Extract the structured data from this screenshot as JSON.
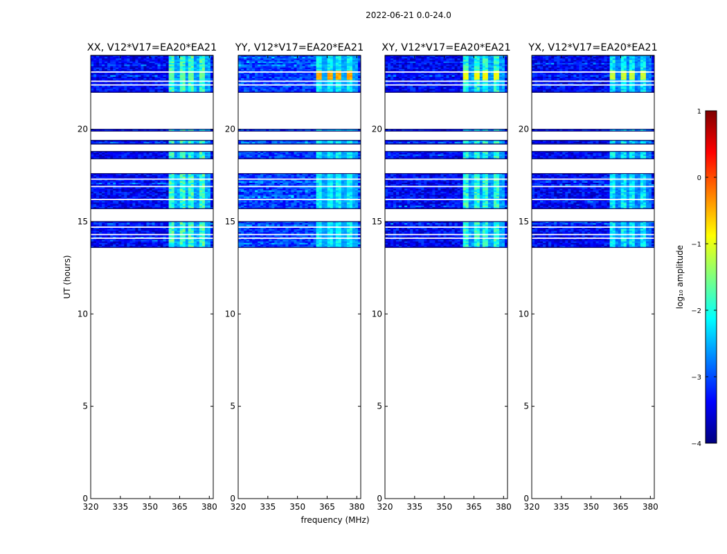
{
  "figure": {
    "suptitle": "2022-06-21 0.0-24.0",
    "ylabel": "UT (hours)",
    "xlabel": "frequency (MHz)"
  },
  "colorbar": {
    "label": "log₁₀ amplitude",
    "range": [
      -4,
      1
    ],
    "ticks": [
      1,
      0,
      -1,
      -2,
      -3,
      -4
    ],
    "tick_labels": [
      "1",
      "0",
      "−1",
      "−2",
      "−3",
      "−4"
    ],
    "colormap": "jet",
    "colors": [
      "#00007f",
      "#0000ff",
      "#007fff",
      "#00ffff",
      "#7fff7f",
      "#ffff00",
      "#ff7f00",
      "#ff0000",
      "#7f0000"
    ]
  },
  "chart_data": [
    {
      "type": "heatmap",
      "title": "XX, V12*V17=EA20*EA21",
      "xlim": [
        320,
        382
      ],
      "ylim": [
        0,
        24
      ],
      "xticks": [
        320,
        335,
        350,
        365,
        380
      ],
      "yticks": [
        0,
        5,
        10,
        15,
        20
      ],
      "xlabel": "",
      "ylabel": "UT (hours)",
      "data_time_ranges_hours": [
        [
          13.6,
          15.0
        ],
        [
          15.7,
          17.6
        ],
        [
          18.4,
          18.8
        ],
        [
          19.2,
          19.4
        ],
        [
          19.9,
          20.0
        ],
        [
          22.0,
          24.0
        ]
      ],
      "rfi_band_mhz": [
        360,
        380
      ],
      "flagged_rows_hours": [
        23.1,
        22.6,
        22.4,
        17.3,
        16.9,
        16.2,
        14.7,
        14.3,
        14.1
      ],
      "typical_log_amplitude": -3.4,
      "peak_log_amplitude": -1.5,
      "peak_band_log_amplitude": -1.6
    },
    {
      "type": "heatmap",
      "title": "YY, V12*V17=EA20*EA21",
      "xlim": [
        320,
        382
      ],
      "ylim": [
        0,
        24
      ],
      "xticks": [
        320,
        335,
        350,
        365,
        380
      ],
      "yticks": [
        0,
        5,
        10,
        15,
        20
      ],
      "xlabel": "frequency (MHz)",
      "ylabel": "",
      "data_time_ranges_hours": [
        [
          13.6,
          15.0
        ],
        [
          15.7,
          17.6
        ],
        [
          18.4,
          18.8
        ],
        [
          19.2,
          19.4
        ],
        [
          19.9,
          20.0
        ],
        [
          22.0,
          24.0
        ]
      ],
      "rfi_band_mhz": [
        360,
        380
      ],
      "flagged_rows_hours": [
        23.1,
        22.6,
        22.4,
        17.3,
        16.9,
        16.2,
        14.7,
        14.3,
        14.1
      ],
      "typical_log_amplitude": -3.1,
      "peak_log_amplitude": -0.3,
      "peak_band_log_amplitude": -2.0
    },
    {
      "type": "heatmap",
      "title": "XY, V12*V17=EA20*EA21",
      "xlim": [
        320,
        382
      ],
      "ylim": [
        0,
        24
      ],
      "xticks": [
        320,
        335,
        350,
        365,
        380
      ],
      "yticks": [
        0,
        5,
        10,
        15,
        20
      ],
      "xlabel": "",
      "ylabel": "",
      "data_time_ranges_hours": [
        [
          13.6,
          15.0
        ],
        [
          15.7,
          17.6
        ],
        [
          18.4,
          18.8
        ],
        [
          19.2,
          19.4
        ],
        [
          19.9,
          20.0
        ],
        [
          22.0,
          24.0
        ]
      ],
      "rfi_band_mhz": [
        360,
        380
      ],
      "flagged_rows_hours": [
        23.1,
        22.6,
        22.4,
        17.3,
        16.9,
        16.2,
        14.7,
        14.3,
        14.1
      ],
      "typical_log_amplitude": -3.4,
      "peak_log_amplitude": -0.8,
      "peak_band_log_amplitude": -1.7
    },
    {
      "type": "heatmap",
      "title": "YX, V12*V17=EA20*EA21",
      "xlim": [
        320,
        382
      ],
      "ylim": [
        0,
        24
      ],
      "xticks": [
        320,
        335,
        350,
        365,
        380
      ],
      "yticks": [
        0,
        5,
        10,
        15,
        20
      ],
      "xlabel": "",
      "ylabel": "",
      "data_time_ranges_hours": [
        [
          13.6,
          15.0
        ],
        [
          15.7,
          17.6
        ],
        [
          18.4,
          18.8
        ],
        [
          19.2,
          19.4
        ],
        [
          19.9,
          20.0
        ],
        [
          22.0,
          24.0
        ]
      ],
      "rfi_band_mhz": [
        360,
        380
      ],
      "flagged_rows_hours": [
        23.1,
        22.6,
        22.4,
        17.3,
        16.9,
        16.2,
        14.7,
        14.3,
        14.1
      ],
      "typical_log_amplitude": -3.4,
      "peak_log_amplitude": -1.0,
      "peak_band_log_amplitude": -2.0
    }
  ]
}
